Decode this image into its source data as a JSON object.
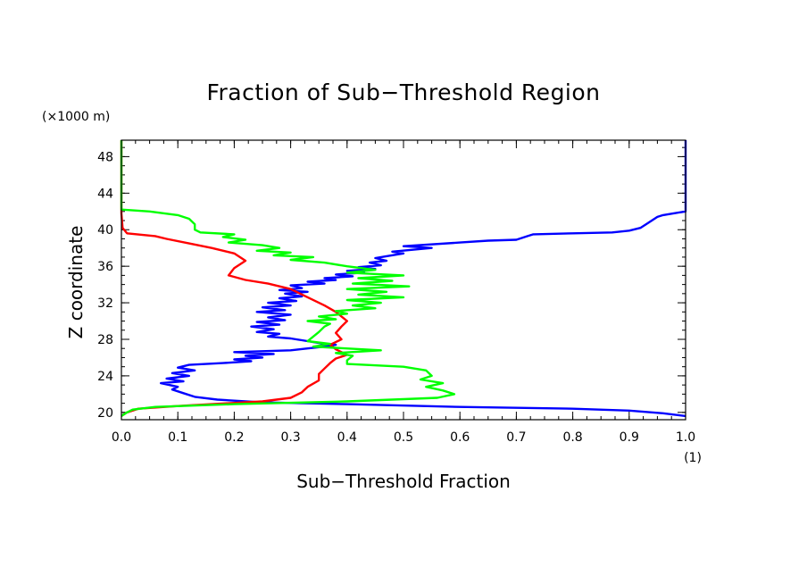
{
  "chart_data": {
    "type": "line",
    "title": "Fraction of Sub−Threshold Region",
    "xlabel": "Sub−Threshold Fraction",
    "ylabel": "Z coordinate",
    "x_unit": "(1)",
    "y_unit": "(×1000 m)",
    "xlim": [
      0.0,
      1.0
    ],
    "ylim": [
      19.2,
      49.8
    ],
    "x_ticks": [
      "0.0",
      "0.1",
      "0.2",
      "0.3",
      "0.4",
      "0.5",
      "0.6",
      "0.7",
      "0.8",
      "0.9",
      "1.0"
    ],
    "y_ticks": [
      "20",
      "24",
      "28",
      "32",
      "36",
      "40",
      "44",
      "48"
    ],
    "grid": false,
    "series": [
      {
        "color": "#0000ff",
        "points": [
          [
            1.0,
            49.8
          ],
          [
            1.0,
            42.0
          ],
          [
            0.98,
            41.8
          ],
          [
            0.96,
            41.6
          ],
          [
            0.95,
            41.4
          ],
          [
            0.94,
            41.0
          ],
          [
            0.93,
            40.6
          ],
          [
            0.92,
            40.2
          ],
          [
            0.9,
            39.9
          ],
          [
            0.87,
            39.7
          ],
          [
            0.8,
            39.6
          ],
          [
            0.73,
            39.5
          ],
          [
            0.72,
            39.3
          ],
          [
            0.7,
            38.9
          ],
          [
            0.65,
            38.8
          ],
          [
            0.6,
            38.6
          ],
          [
            0.5,
            38.2
          ],
          [
            0.55,
            38.0
          ],
          [
            0.48,
            37.6
          ],
          [
            0.5,
            37.4
          ],
          [
            0.47,
            37.1
          ],
          [
            0.45,
            36.9
          ],
          [
            0.47,
            36.6
          ],
          [
            0.44,
            36.4
          ],
          [
            0.46,
            36.1
          ],
          [
            0.42,
            35.9
          ],
          [
            0.45,
            35.7
          ],
          [
            0.4,
            35.5
          ],
          [
            0.43,
            35.3
          ],
          [
            0.38,
            35.1
          ],
          [
            0.41,
            34.9
          ],
          [
            0.36,
            34.7
          ],
          [
            0.38,
            34.5
          ],
          [
            0.33,
            34.3
          ],
          [
            0.36,
            34.1
          ],
          [
            0.3,
            33.9
          ],
          [
            0.32,
            33.6
          ],
          [
            0.28,
            33.4
          ],
          [
            0.33,
            33.2
          ],
          [
            0.29,
            33.0
          ],
          [
            0.32,
            32.7
          ],
          [
            0.28,
            32.5
          ],
          [
            0.31,
            32.2
          ],
          [
            0.26,
            32.0
          ],
          [
            0.3,
            31.7
          ],
          [
            0.25,
            31.5
          ],
          [
            0.29,
            31.2
          ],
          [
            0.24,
            31.0
          ],
          [
            0.3,
            30.7
          ],
          [
            0.26,
            30.4
          ],
          [
            0.29,
            30.1
          ],
          [
            0.24,
            29.9
          ],
          [
            0.28,
            29.6
          ],
          [
            0.23,
            29.4
          ],
          [
            0.27,
            29.1
          ],
          [
            0.24,
            28.8
          ],
          [
            0.28,
            28.6
          ],
          [
            0.26,
            28.3
          ],
          [
            0.3,
            28.1
          ],
          [
            0.32,
            27.9
          ],
          [
            0.35,
            27.6
          ],
          [
            0.38,
            27.4
          ],
          [
            0.36,
            27.2
          ],
          [
            0.33,
            27.0
          ],
          [
            0.3,
            26.8
          ],
          [
            0.2,
            26.6
          ],
          [
            0.27,
            26.4
          ],
          [
            0.22,
            26.2
          ],
          [
            0.25,
            26.0
          ],
          [
            0.2,
            25.8
          ],
          [
            0.23,
            25.6
          ],
          [
            0.18,
            25.4
          ],
          [
            0.12,
            25.2
          ],
          [
            0.1,
            24.9
          ],
          [
            0.13,
            24.6
          ],
          [
            0.09,
            24.3
          ],
          [
            0.12,
            24.0
          ],
          [
            0.08,
            23.7
          ],
          [
            0.11,
            23.4
          ],
          [
            0.07,
            23.2
          ],
          [
            0.1,
            22.8
          ],
          [
            0.09,
            22.5
          ],
          [
            0.11,
            22.1
          ],
          [
            0.13,
            21.7
          ],
          [
            0.17,
            21.4
          ],
          [
            0.25,
            21.1
          ],
          [
            0.4,
            20.9
          ],
          [
            0.6,
            20.6
          ],
          [
            0.8,
            20.4
          ],
          [
            0.9,
            20.2
          ],
          [
            0.96,
            19.9
          ],
          [
            1.0,
            19.6
          ]
        ]
      },
      {
        "color": "#ff0000",
        "points": [
          [
            0.0,
            49.8
          ],
          [
            0.0,
            41.8
          ],
          [
            0.002,
            40.2
          ],
          [
            0.01,
            39.6
          ],
          [
            0.06,
            39.3
          ],
          [
            0.08,
            39.0
          ],
          [
            0.12,
            38.5
          ],
          [
            0.16,
            38.0
          ],
          [
            0.2,
            37.4
          ],
          [
            0.22,
            36.6
          ],
          [
            0.2,
            35.8
          ],
          [
            0.19,
            35.0
          ],
          [
            0.22,
            34.5
          ],
          [
            0.26,
            34.1
          ],
          [
            0.3,
            33.5
          ],
          [
            0.33,
            32.6
          ],
          [
            0.36,
            31.7
          ],
          [
            0.38,
            31.0
          ],
          [
            0.4,
            30.0
          ],
          [
            0.39,
            29.4
          ],
          [
            0.38,
            28.7
          ],
          [
            0.39,
            28.0
          ],
          [
            0.37,
            27.4
          ],
          [
            0.38,
            26.9
          ],
          [
            0.4,
            26.3
          ],
          [
            0.38,
            25.9
          ],
          [
            0.37,
            25.4
          ],
          [
            0.36,
            24.8
          ],
          [
            0.35,
            24.2
          ],
          [
            0.35,
            23.5
          ],
          [
            0.33,
            22.8
          ],
          [
            0.32,
            22.2
          ],
          [
            0.3,
            21.6
          ],
          [
            0.25,
            21.2
          ],
          [
            0.1,
            20.7
          ],
          [
            0.03,
            20.4
          ],
          [
            0.01,
            20.0
          ],
          [
            0.0,
            19.6
          ]
        ]
      },
      {
        "color": "#00ff00",
        "points": [
          [
            0.0,
            49.8
          ],
          [
            0.0,
            42.2
          ],
          [
            0.05,
            42.0
          ],
          [
            0.1,
            41.6
          ],
          [
            0.12,
            41.2
          ],
          [
            0.13,
            40.6
          ],
          [
            0.13,
            40.0
          ],
          [
            0.14,
            39.7
          ],
          [
            0.2,
            39.5
          ],
          [
            0.18,
            39.2
          ],
          [
            0.22,
            38.9
          ],
          [
            0.19,
            38.6
          ],
          [
            0.25,
            38.3
          ],
          [
            0.28,
            38.0
          ],
          [
            0.24,
            37.7
          ],
          [
            0.3,
            37.5
          ],
          [
            0.27,
            37.2
          ],
          [
            0.34,
            37.0
          ],
          [
            0.3,
            36.7
          ],
          [
            0.36,
            36.4
          ],
          [
            0.4,
            36.0
          ],
          [
            0.45,
            35.6
          ],
          [
            0.4,
            35.3
          ],
          [
            0.5,
            35.0
          ],
          [
            0.42,
            34.7
          ],
          [
            0.48,
            34.4
          ],
          [
            0.41,
            34.1
          ],
          [
            0.51,
            33.8
          ],
          [
            0.4,
            33.5
          ],
          [
            0.47,
            33.2
          ],
          [
            0.42,
            32.9
          ],
          [
            0.5,
            32.6
          ],
          [
            0.4,
            32.3
          ],
          [
            0.46,
            32.0
          ],
          [
            0.41,
            31.7
          ],
          [
            0.45,
            31.4
          ],
          [
            0.38,
            31.1
          ],
          [
            0.4,
            30.8
          ],
          [
            0.35,
            30.5
          ],
          [
            0.38,
            30.2
          ],
          [
            0.33,
            30.0
          ],
          [
            0.37,
            29.7
          ],
          [
            0.36,
            29.4
          ],
          [
            0.35,
            28.8
          ],
          [
            0.34,
            28.3
          ],
          [
            0.33,
            27.8
          ],
          [
            0.37,
            27.5
          ],
          [
            0.34,
            27.2
          ],
          [
            0.46,
            26.8
          ],
          [
            0.38,
            26.5
          ],
          [
            0.41,
            26.2
          ],
          [
            0.4,
            25.7
          ],
          [
            0.4,
            25.3
          ],
          [
            0.5,
            25.0
          ],
          [
            0.54,
            24.6
          ],
          [
            0.55,
            24.0
          ],
          [
            0.53,
            23.6
          ],
          [
            0.57,
            23.2
          ],
          [
            0.54,
            22.8
          ],
          [
            0.57,
            22.4
          ],
          [
            0.59,
            22.0
          ],
          [
            0.56,
            21.6
          ],
          [
            0.4,
            21.2
          ],
          [
            0.2,
            20.9
          ],
          [
            0.06,
            20.6
          ],
          [
            0.02,
            20.3
          ],
          [
            0.01,
            20.0
          ],
          [
            0.0,
            19.6
          ]
        ]
      }
    ]
  }
}
